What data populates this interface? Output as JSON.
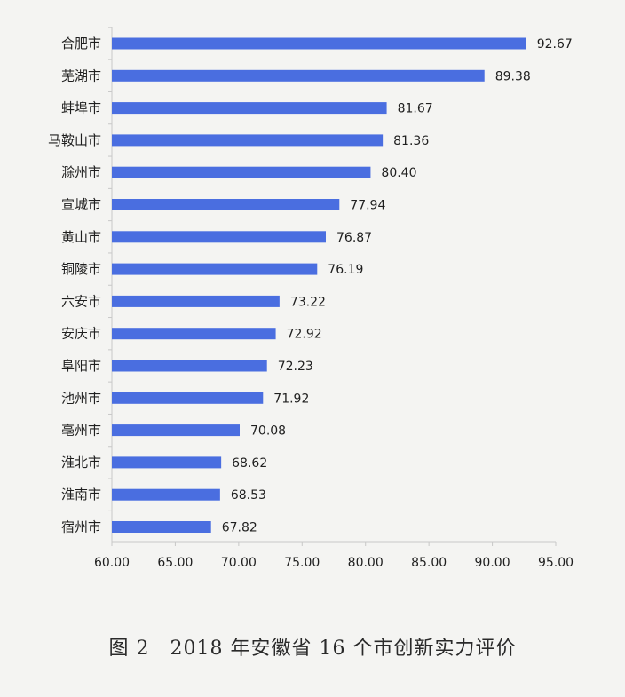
{
  "chart_data": {
    "type": "bar",
    "orientation": "horizontal",
    "categories": [
      "合肥市",
      "芜湖市",
      "蚌埠市",
      "马鞍山市",
      "滁州市",
      "宣城市",
      "黄山市",
      "铜陵市",
      "六安市",
      "安庆市",
      "阜阳市",
      "池州市",
      "亳州市",
      "淮北市",
      "淮南市",
      "宿州市"
    ],
    "values": [
      92.67,
      89.38,
      81.67,
      81.36,
      80.4,
      77.94,
      76.87,
      76.19,
      73.22,
      72.92,
      72.23,
      71.92,
      70.08,
      68.62,
      68.53,
      67.82
    ],
    "value_labels": [
      "92.67",
      "89.38",
      "81.67",
      "81.36",
      "80.40",
      "77.94",
      "76.87",
      "76.19",
      "73.22",
      "72.92",
      "72.23",
      "71.92",
      "70.08",
      "68.62",
      "68.53",
      "67.82"
    ],
    "xlim": [
      60,
      95
    ],
    "xticks": [
      "60.00",
      "65.00",
      "70.00",
      "75.00",
      "80.00",
      "85.00",
      "90.00",
      "95.00"
    ],
    "xtick_values": [
      60,
      65,
      70,
      75,
      80,
      85,
      90,
      95
    ],
    "bar_color": "#4a6ee0",
    "grid": false,
    "legend": "none",
    "title": "",
    "xlabel": "",
    "ylabel": ""
  },
  "caption": "图 2　2018 年安徽省 16 个市创新实力评价"
}
